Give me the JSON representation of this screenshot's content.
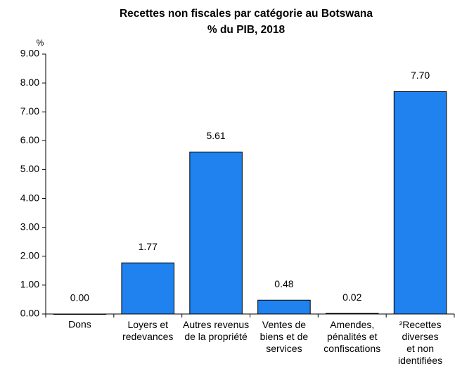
{
  "chart_data": {
    "type": "bar",
    "title": "Recettes non fiscales par catégorie au Botswana",
    "subtitle": "% du PIB, 2018",
    "y_axis_label": "%",
    "categories": [
      "Dons",
      "Loyers et\nredevances",
      "Autres revenus\nde la propriété",
      "Ventes de\nbiens et de\nservices",
      "Amendes,\npénalités et\nconfiscations",
      "²Recettes\ndiverses\net non\nidentifiées"
    ],
    "values": [
      0,
      1.77,
      5.61,
      0.48,
      0.02,
      7.7
    ],
    "value_labels": [
      "0.00",
      "1.77",
      "5.61",
      "0.48",
      "0.02",
      "7.70"
    ],
    "color": "#1f82ee",
    "ylim": [
      0,
      9
    ],
    "yticks": [
      {
        "value": 0,
        "label": "0.00"
      },
      {
        "value": 1,
        "label": "1.00"
      },
      {
        "value": 2,
        "label": "2.00"
      },
      {
        "value": 3,
        "label": "3.00"
      },
      {
        "value": 4,
        "label": "4.00"
      },
      {
        "value": 5,
        "label": "5.00"
      },
      {
        "value": 6,
        "label": "6.00"
      },
      {
        "value": 7,
        "label": "7.00"
      },
      {
        "value": 8,
        "label": "8.00"
      },
      {
        "value": 9,
        "label": "9.00"
      }
    ],
    "grid": false
  }
}
